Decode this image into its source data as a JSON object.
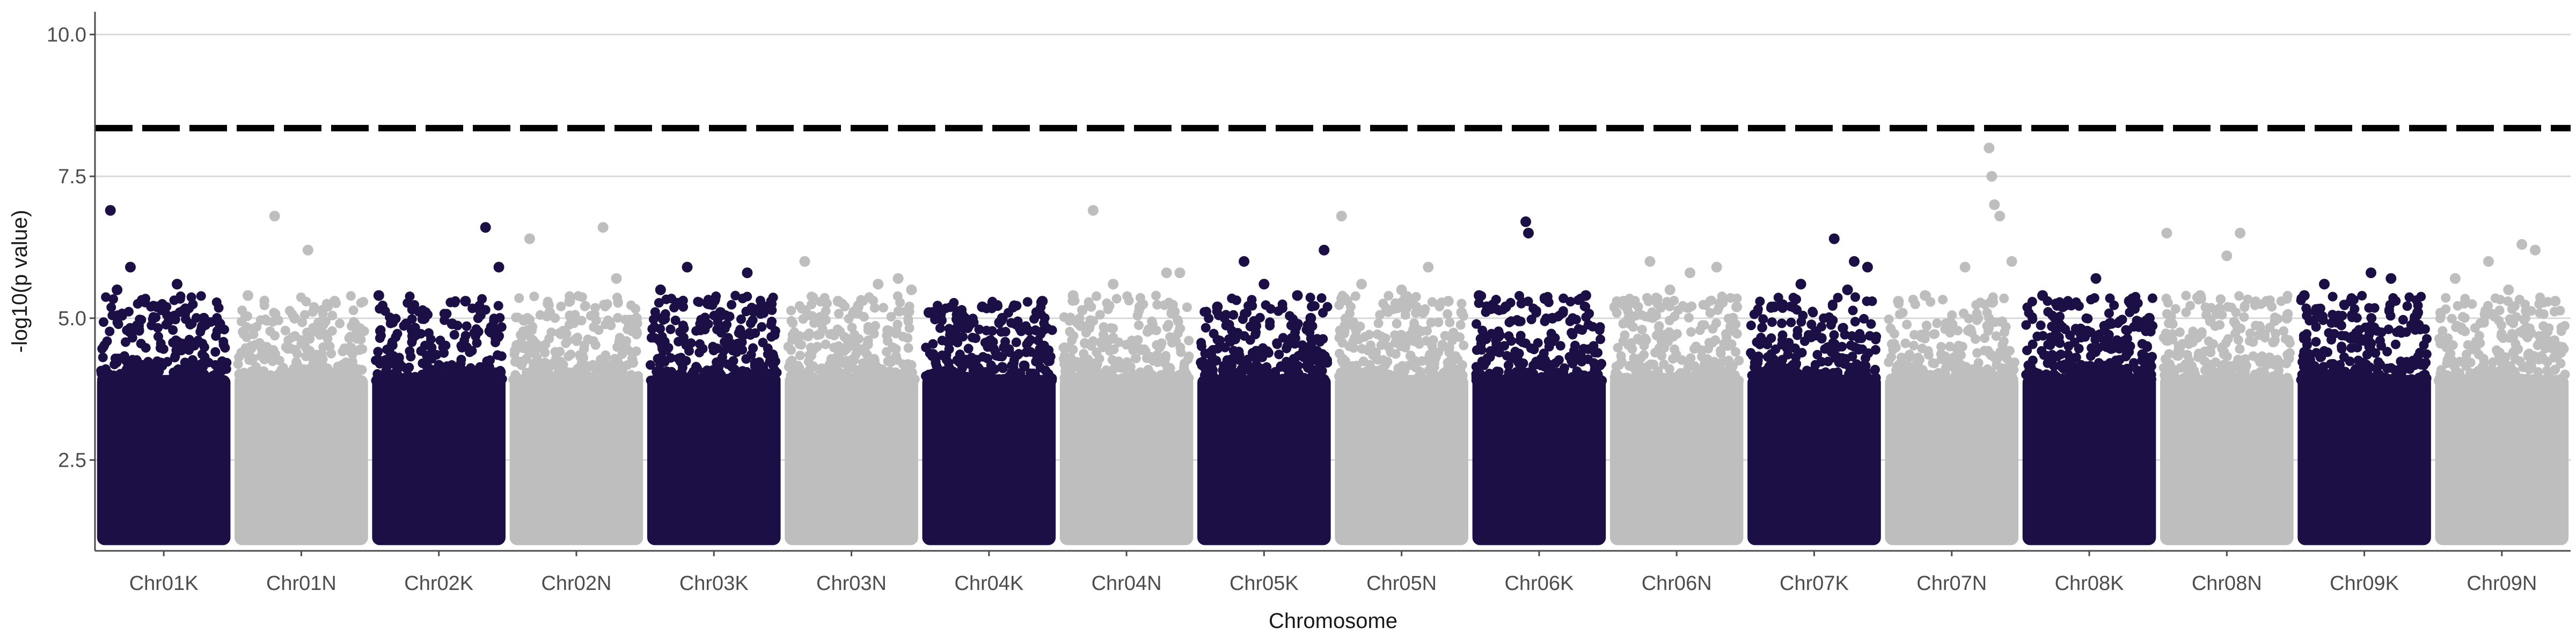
{
  "chart_data": {
    "type": "scatter",
    "title": "",
    "xlabel": "Chromosome",
    "ylabel": "-log10(p value)",
    "ylim": [
      0.9,
      10.4
    ],
    "yticks": [
      2.5,
      5.0,
      7.5,
      10.0
    ],
    "ytick_labels": [
      "2.5",
      "5.0",
      "7.5",
      "10.0"
    ],
    "grid": "horizontal major lines",
    "legend": "none",
    "threshold": {
      "value": 8.35,
      "style": "dashed",
      "color": "#000000"
    },
    "colors": {
      "odd": "#1b0f45",
      "even": "#bebebe",
      "grid": "#d9d9d9",
      "axis": "#4d4d4d"
    },
    "categories": [
      "Chr01K",
      "Chr01N",
      "Chr02K",
      "Chr02N",
      "Chr03K",
      "Chr03N",
      "Chr04K",
      "Chr04N",
      "Chr05K",
      "Chr05N",
      "Chr06K",
      "Chr06N",
      "Chr07K",
      "Chr07N",
      "Chr08K",
      "Chr08N",
      "Chr09K",
      "Chr09N"
    ],
    "series": [
      {
        "chromosome": "Chr01K",
        "top_points": [
          [
            0.1,
            6.9
          ],
          [
            0.25,
            5.9
          ],
          [
            0.15,
            5.5
          ],
          [
            0.6,
            5.6
          ],
          [
            0.8,
            5.0
          ],
          [
            0.45,
            5.2
          ],
          [
            0.92,
            4.9
          ]
        ]
      },
      {
        "chromosome": "Chr01N",
        "top_points": [
          [
            0.3,
            6.8
          ],
          [
            0.55,
            6.2
          ],
          [
            0.1,
            5.4
          ],
          [
            0.75,
            5.3
          ],
          [
            0.9,
            4.9
          ],
          [
            0.45,
            5.0
          ]
        ]
      },
      {
        "chromosome": "Chr02K",
        "top_points": [
          [
            0.85,
            6.6
          ],
          [
            0.95,
            5.9
          ],
          [
            0.05,
            5.4
          ],
          [
            0.4,
            5.1
          ],
          [
            0.7,
            5.3
          ],
          [
            0.6,
            4.9
          ]
        ]
      },
      {
        "chromosome": "Chr02N",
        "top_points": [
          [
            0.15,
            6.4
          ],
          [
            0.7,
            6.6
          ],
          [
            0.8,
            5.7
          ],
          [
            0.45,
            5.3
          ],
          [
            0.3,
            5.1
          ],
          [
            0.95,
            5.0
          ]
        ]
      },
      {
        "chromosome": "Chr03K",
        "top_points": [
          [
            0.3,
            5.9
          ],
          [
            0.75,
            5.8
          ],
          [
            0.1,
            5.5
          ],
          [
            0.9,
            5.2
          ],
          [
            0.55,
            5.1
          ],
          [
            0.4,
            4.9
          ]
        ]
      },
      {
        "chromosome": "Chr03N",
        "top_points": [
          [
            0.15,
            6.0
          ],
          [
            0.7,
            5.6
          ],
          [
            0.85,
            5.7
          ],
          [
            0.4,
            5.3
          ],
          [
            0.95,
            5.5
          ],
          [
            0.55,
            5.2
          ]
        ]
      },
      {
        "chromosome": "Chr04K",
        "top_points": [
          [
            0.05,
            5.1
          ],
          [
            0.45,
            5.2
          ],
          [
            0.9,
            5.3
          ],
          [
            0.7,
            4.9
          ],
          [
            0.25,
            4.8
          ],
          [
            0.6,
            5.0
          ]
        ]
      },
      {
        "chromosome": "Chr04N",
        "top_points": [
          [
            0.25,
            6.9
          ],
          [
            0.4,
            5.6
          ],
          [
            0.8,
            5.8
          ],
          [
            0.9,
            5.8
          ],
          [
            0.1,
            5.4
          ],
          [
            0.6,
            5.2
          ]
        ]
      },
      {
        "chromosome": "Chr05K",
        "top_points": [
          [
            0.35,
            6.0
          ],
          [
            0.95,
            6.2
          ],
          [
            0.5,
            5.6
          ],
          [
            0.75,
            5.4
          ],
          [
            0.15,
            5.2
          ],
          [
            0.85,
            5.0
          ]
        ]
      },
      {
        "chromosome": "Chr05N",
        "top_points": [
          [
            0.05,
            6.8
          ],
          [
            0.7,
            5.9
          ],
          [
            0.2,
            5.6
          ],
          [
            0.5,
            5.5
          ],
          [
            0.85,
            5.3
          ],
          [
            0.95,
            5.1
          ]
        ]
      },
      {
        "chromosome": "Chr06K",
        "top_points": [
          [
            0.4,
            6.7
          ],
          [
            0.42,
            6.5
          ],
          [
            0.05,
            5.4
          ],
          [
            0.25,
            5.2
          ],
          [
            0.85,
            5.4
          ],
          [
            0.6,
            5.0
          ]
        ]
      },
      {
        "chromosome": "Chr06N",
        "top_points": [
          [
            0.3,
            6.0
          ],
          [
            0.6,
            5.8
          ],
          [
            0.8,
            5.9
          ],
          [
            0.1,
            5.3
          ],
          [
            0.45,
            5.5
          ],
          [
            0.95,
            5.2
          ]
        ]
      },
      {
        "chromosome": "Chr07K",
        "top_points": [
          [
            0.65,
            6.4
          ],
          [
            0.9,
            5.9
          ],
          [
            0.8,
            6.0
          ],
          [
            0.4,
            5.6
          ],
          [
            0.2,
            5.2
          ],
          [
            0.75,
            5.5
          ]
        ]
      },
      {
        "chromosome": "Chr07N",
        "top_points": [
          [
            0.78,
            8.0
          ],
          [
            0.8,
            7.5
          ],
          [
            0.82,
            7.0
          ],
          [
            0.86,
            6.8
          ],
          [
            0.95,
            6.0
          ],
          [
            0.6,
            5.9
          ],
          [
            0.3,
            5.4
          ],
          [
            0.1,
            5.3
          ]
        ]
      },
      {
        "chromosome": "Chr08K",
        "top_points": [
          [
            0.55,
            5.7
          ],
          [
            0.15,
            5.4
          ],
          [
            0.3,
            5.2
          ],
          [
            0.8,
            5.3
          ],
          [
            0.95,
            5.0
          ],
          [
            0.65,
            4.9
          ]
        ]
      },
      {
        "chromosome": "Chr08N",
        "top_points": [
          [
            0.05,
            6.5
          ],
          [
            0.6,
            6.5
          ],
          [
            0.5,
            6.1
          ],
          [
            0.3,
            5.4
          ],
          [
            0.8,
            5.3
          ],
          [
            0.95,
            5.0
          ]
        ]
      },
      {
        "chromosome": "Chr09K",
        "top_points": [
          [
            0.55,
            5.8
          ],
          [
            0.7,
            5.7
          ],
          [
            0.2,
            5.6
          ],
          [
            0.05,
            5.4
          ],
          [
            0.4,
            5.3
          ],
          [
            0.9,
            5.1
          ]
        ]
      },
      {
        "chromosome": "Chr09N",
        "top_points": [
          [
            0.65,
            6.3
          ],
          [
            0.75,
            6.2
          ],
          [
            0.4,
            6.0
          ],
          [
            0.15,
            5.7
          ],
          [
            0.55,
            5.5
          ],
          [
            0.9,
            5.3
          ]
        ]
      }
    ],
    "background_range": {
      "min": 1.0,
      "max": 4.0
    }
  }
}
